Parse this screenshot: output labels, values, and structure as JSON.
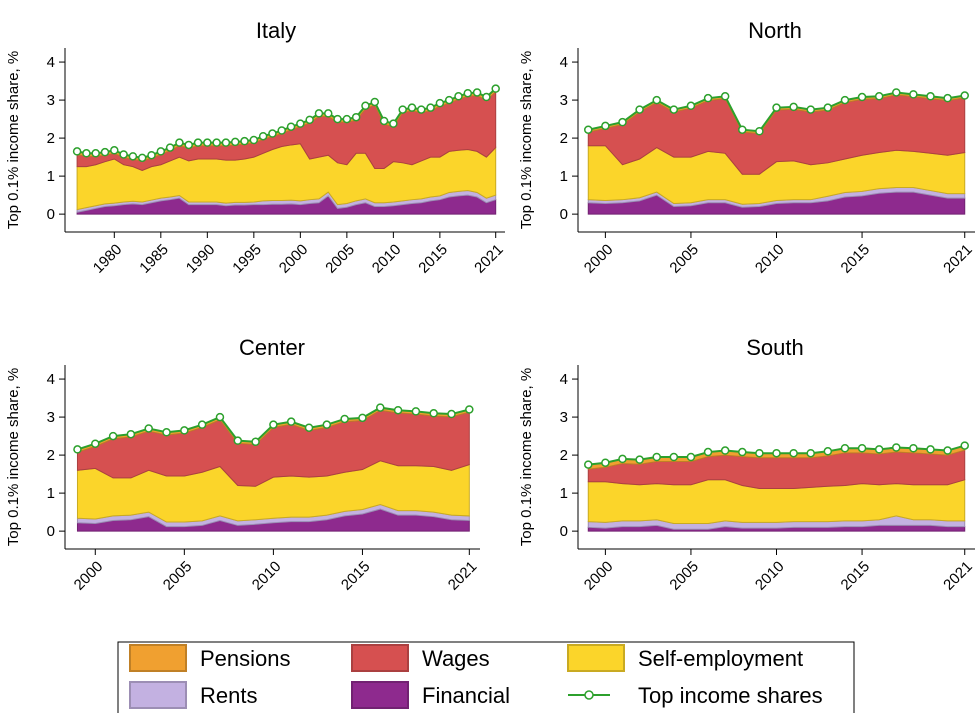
{
  "chart_data": [
    {
      "type": "stacked_area",
      "title": "Italy",
      "ylabel": "Top 0.1% income share, %",
      "x": [
        1976,
        1977,
        1978,
        1979,
        1980,
        1981,
        1982,
        1983,
        1984,
        1985,
        1986,
        1987,
        1988,
        1989,
        1990,
        1991,
        1992,
        1993,
        1994,
        1995,
        1996,
        1997,
        1998,
        1999,
        2000,
        2001,
        2002,
        2003,
        2004,
        2005,
        2006,
        2007,
        2008,
        2009,
        2010,
        2011,
        2012,
        2013,
        2014,
        2015,
        2016,
        2017,
        2018,
        2019,
        2020,
        2021
      ],
      "xlim": [
        1974.7,
        2022
      ],
      "xticks": [
        1980,
        1985,
        1990,
        1995,
        2000,
        2005,
        2010,
        2015,
        2021
      ],
      "ylim": [
        -0.47,
        4.37
      ],
      "yticks": [
        0,
        1,
        2,
        3,
        4
      ],
      "series": [
        {
          "name": "Financial",
          "color": "#8e2a8e",
          "values": [
            0.05,
            0.1,
            0.15,
            0.2,
            0.22,
            0.25,
            0.27,
            0.25,
            0.3,
            0.35,
            0.38,
            0.42,
            0.25,
            0.25,
            0.25,
            0.25,
            0.22,
            0.24,
            0.24,
            0.25,
            0.25,
            0.26,
            0.26,
            0.27,
            0.25,
            0.28,
            0.3,
            0.48,
            0.15,
            0.18,
            0.25,
            0.3,
            0.2,
            0.2,
            0.22,
            0.25,
            0.28,
            0.3,
            0.35,
            0.38,
            0.45,
            0.48,
            0.5,
            0.45,
            0.3,
            0.38
          ]
        },
        {
          "name": "Rents",
          "color": "#c3b1e1",
          "values": [
            0.07,
            0.07,
            0.07,
            0.07,
            0.07,
            0.07,
            0.07,
            0.07,
            0.07,
            0.07,
            0.07,
            0.07,
            0.07,
            0.07,
            0.07,
            0.07,
            0.07,
            0.07,
            0.07,
            0.07,
            0.1,
            0.1,
            0.1,
            0.1,
            0.1,
            0.1,
            0.1,
            0.1,
            0.1,
            0.1,
            0.1,
            0.1,
            0.1,
            0.1,
            0.1,
            0.1,
            0.1,
            0.1,
            0.1,
            0.1,
            0.12,
            0.12,
            0.12,
            0.12,
            0.12,
            0.12
          ]
        },
        {
          "name": "Self-employment",
          "color": "#fbd52a",
          "values": [
            1.13,
            1.08,
            1.08,
            1.11,
            1.16,
            0.98,
            0.91,
            0.83,
            0.88,
            0.88,
            0.95,
            1.01,
            1.08,
            1.13,
            1.13,
            1.13,
            1.13,
            1.11,
            1.14,
            1.18,
            1.25,
            1.34,
            1.42,
            1.45,
            1.5,
            1.07,
            1.1,
            0.97,
            1.1,
            1.02,
            1.25,
            1.2,
            0.9,
            0.9,
            1.06,
            1.0,
            0.92,
            1.0,
            1.05,
            1.02,
            1.08,
            1.08,
            1.08,
            1.08,
            1.08,
            1.25
          ]
        },
        {
          "name": "Wages",
          "color": "#d65050",
          "values": [
            0.32,
            0.27,
            0.22,
            0.17,
            0.15,
            0.19,
            0.19,
            0.25,
            0.22,
            0.27,
            0.27,
            0.3,
            0.34,
            0.35,
            0.35,
            0.35,
            0.38,
            0.4,
            0.39,
            0.37,
            0.37,
            0.34,
            0.34,
            0.4,
            0.45,
            0.95,
            1.07,
            1.02,
            1.07,
            1.12,
            0.87,
            1.17,
            1.67,
            1.17,
            0.92,
            1.32,
            1.42,
            1.27,
            1.22,
            1.34,
            1.27,
            1.34,
            1.4,
            1.47,
            1.5,
            1.47
          ]
        },
        {
          "name": "Pensions",
          "color": "#f0a030",
          "values": [
            0.08,
            0.08,
            0.08,
            0.08,
            0.08,
            0.08,
            0.08,
            0.08,
            0.08,
            0.08,
            0.08,
            0.08,
            0.08,
            0.08,
            0.08,
            0.08,
            0.08,
            0.08,
            0.08,
            0.08,
            0.08,
            0.08,
            0.08,
            0.08,
            0.08,
            0.08,
            0.08,
            0.08,
            0.08,
            0.08,
            0.08,
            0.08,
            0.08,
            0.08,
            0.08,
            0.08,
            0.08,
            0.08,
            0.08,
            0.08,
            0.08,
            0.08,
            0.08,
            0.08,
            0.08,
            0.08
          ]
        },
        {
          "name": "Top income shares",
          "type": "line",
          "color": "#2ca02c",
          "values": [
            1.65,
            1.6,
            1.6,
            1.63,
            1.68,
            1.57,
            1.52,
            1.48,
            1.55,
            1.65,
            1.75,
            1.88,
            1.82,
            1.88,
            1.88,
            1.88,
            1.88,
            1.9,
            1.92,
            1.95,
            2.05,
            2.12,
            2.2,
            2.3,
            2.38,
            2.48,
            2.65,
            2.65,
            2.5,
            2.5,
            2.55,
            2.85,
            2.95,
            2.45,
            2.38,
            2.75,
            2.8,
            2.75,
            2.8,
            2.92,
            3.0,
            3.1,
            3.18,
            3.2,
            3.08,
            3.3
          ]
        }
      ]
    },
    {
      "type": "stacked_area",
      "title": "North",
      "ylabel": "Top 0.1% income share, %",
      "x": [
        1999,
        2000,
        2001,
        2002,
        2003,
        2004,
        2005,
        2006,
        2007,
        2008,
        2009,
        2010,
        2011,
        2012,
        2013,
        2014,
        2015,
        2016,
        2017,
        2018,
        2019,
        2020,
        2021
      ],
      "xlim": [
        1998.4,
        2021.6
      ],
      "xticks": [
        2000,
        2005,
        2010,
        2015,
        2021
      ],
      "ylim": [
        -0.47,
        4.37
      ],
      "yticks": [
        0,
        1,
        2,
        3,
        4
      ],
      "series": [
        {
          "name": "Financial",
          "color": "#8e2a8e",
          "values": [
            0.3,
            0.28,
            0.3,
            0.35,
            0.5,
            0.2,
            0.22,
            0.3,
            0.3,
            0.18,
            0.2,
            0.28,
            0.3,
            0.3,
            0.35,
            0.45,
            0.48,
            0.55,
            0.58,
            0.58,
            0.5,
            0.42,
            0.42
          ]
        },
        {
          "name": "Rents",
          "color": "#c3b1e1",
          "values": [
            0.08,
            0.08,
            0.08,
            0.08,
            0.08,
            0.08,
            0.08,
            0.08,
            0.08,
            0.08,
            0.08,
            0.08,
            0.08,
            0.08,
            0.12,
            0.12,
            0.12,
            0.12,
            0.12,
            0.12,
            0.12,
            0.12,
            0.12
          ]
        },
        {
          "name": "Self-employment",
          "color": "#fbd52a",
          "values": [
            1.42,
            1.44,
            0.92,
            1.02,
            1.17,
            1.22,
            1.2,
            1.27,
            1.22,
            0.79,
            0.77,
            1.02,
            1.02,
            0.92,
            0.88,
            0.88,
            0.95,
            0.95,
            0.98,
            0.95,
            0.98,
            1.01,
            1.08
          ]
        },
        {
          "name": "Wages",
          "color": "#d65050",
          "values": [
            0.36,
            0.46,
            1.06,
            1.24,
            1.19,
            1.19,
            1.29,
            1.34,
            1.44,
            1.11,
            1.07,
            1.36,
            1.36,
            1.39,
            1.39,
            1.49,
            1.47,
            1.42,
            1.46,
            1.44,
            1.44,
            1.44,
            1.44
          ]
        },
        {
          "name": "Pensions",
          "color": "#f0a030",
          "values": [
            0.06,
            0.06,
            0.06,
            0.06,
            0.06,
            0.06,
            0.06,
            0.06,
            0.06,
            0.06,
            0.06,
            0.06,
            0.06,
            0.06,
            0.06,
            0.06,
            0.06,
            0.06,
            0.06,
            0.06,
            0.06,
            0.06,
            0.06
          ]
        },
        {
          "name": "Top income shares",
          "type": "line",
          "color": "#2ca02c",
          "values": [
            2.22,
            2.32,
            2.42,
            2.75,
            3.0,
            2.75,
            2.85,
            3.05,
            3.1,
            2.22,
            2.18,
            2.8,
            2.82,
            2.75,
            2.8,
            3.0,
            3.08,
            3.1,
            3.2,
            3.15,
            3.1,
            3.05,
            3.12
          ]
        }
      ]
    },
    {
      "type": "stacked_area",
      "title": "Center",
      "ylabel": "Top 0.1% income share, %",
      "x": [
        1999,
        2000,
        2001,
        2002,
        2003,
        2004,
        2005,
        2006,
        2007,
        2008,
        2009,
        2010,
        2011,
        2012,
        2013,
        2014,
        2015,
        2016,
        2017,
        2018,
        2019,
        2020,
        2021
      ],
      "xlim": [
        1998.3,
        2021.6
      ],
      "xticks": [
        2000,
        2005,
        2010,
        2015,
        2021
      ],
      "ylim": [
        -0.47,
        4.37
      ],
      "yticks": [
        0,
        1,
        2,
        3,
        4
      ],
      "series": [
        {
          "name": "Financial",
          "color": "#8e2a8e",
          "values": [
            0.22,
            0.2,
            0.28,
            0.3,
            0.38,
            0.12,
            0.12,
            0.15,
            0.28,
            0.15,
            0.18,
            0.22,
            0.25,
            0.25,
            0.3,
            0.4,
            0.45,
            0.58,
            0.42,
            0.42,
            0.38,
            0.3,
            0.28
          ]
        },
        {
          "name": "Rents",
          "color": "#c3b1e1",
          "values": [
            0.12,
            0.12,
            0.12,
            0.12,
            0.12,
            0.12,
            0.12,
            0.12,
            0.12,
            0.12,
            0.12,
            0.12,
            0.12,
            0.12,
            0.12,
            0.12,
            0.12,
            0.12,
            0.12,
            0.12,
            0.12,
            0.12,
            0.12
          ]
        },
        {
          "name": "Self-employment",
          "color": "#fbd52a",
          "values": [
            1.26,
            1.33,
            1.0,
            0.98,
            1.1,
            1.21,
            1.21,
            1.28,
            1.3,
            0.93,
            0.88,
            1.08,
            1.08,
            1.05,
            1.03,
            1.03,
            1.05,
            1.15,
            1.18,
            1.18,
            1.2,
            1.18,
            1.35
          ]
        },
        {
          "name": "Wages",
          "color": "#d65050",
          "values": [
            0.48,
            0.58,
            1.03,
            1.08,
            1.03,
            1.08,
            1.13,
            1.18,
            1.23,
            1.11,
            1.1,
            1.31,
            1.36,
            1.23,
            1.28,
            1.33,
            1.29,
            1.33,
            1.39,
            1.36,
            1.33,
            1.41,
            1.38
          ]
        },
        {
          "name": "Pensions",
          "color": "#f0a030",
          "values": [
            0.07,
            0.07,
            0.07,
            0.07,
            0.07,
            0.07,
            0.07,
            0.07,
            0.07,
            0.07,
            0.07,
            0.07,
            0.07,
            0.07,
            0.07,
            0.07,
            0.07,
            0.07,
            0.07,
            0.07,
            0.07,
            0.07,
            0.07
          ]
        },
        {
          "name": "Top income shares",
          "type": "line",
          "color": "#2ca02c",
          "values": [
            2.15,
            2.3,
            2.5,
            2.55,
            2.7,
            2.6,
            2.65,
            2.8,
            3.0,
            2.38,
            2.35,
            2.8,
            2.88,
            2.72,
            2.8,
            2.95,
            2.98,
            3.25,
            3.18,
            3.15,
            3.1,
            3.08,
            3.2
          ]
        }
      ]
    },
    {
      "type": "stacked_area",
      "title": "South",
      "ylabel": "Top 0.1% income share, %",
      "x": [
        1999,
        2000,
        2001,
        2002,
        2003,
        2004,
        2005,
        2006,
        2007,
        2008,
        2009,
        2010,
        2011,
        2012,
        2013,
        2014,
        2015,
        2016,
        2017,
        2018,
        2019,
        2020,
        2021
      ],
      "xlim": [
        1998.4,
        2021.6
      ],
      "xticks": [
        2000,
        2005,
        2010,
        2015,
        2021
      ],
      "ylim": [
        -0.47,
        4.37
      ],
      "yticks": [
        0,
        1,
        2,
        3,
        4
      ],
      "series": [
        {
          "name": "Financial",
          "color": "#8e2a8e",
          "values": [
            0.1,
            0.08,
            0.12,
            0.12,
            0.15,
            0.05,
            0.05,
            0.05,
            0.12,
            0.08,
            0.08,
            0.08,
            0.1,
            0.1,
            0.1,
            0.12,
            0.12,
            0.15,
            0.15,
            0.15,
            0.15,
            0.12,
            0.12
          ]
        },
        {
          "name": "Rents",
          "color": "#c3b1e1",
          "values": [
            0.15,
            0.15,
            0.15,
            0.15,
            0.15,
            0.15,
            0.15,
            0.15,
            0.15,
            0.15,
            0.15,
            0.15,
            0.15,
            0.15,
            0.15,
            0.15,
            0.15,
            0.15,
            0.25,
            0.15,
            0.15,
            0.15,
            0.15
          ]
        },
        {
          "name": "Self-employment",
          "color": "#fbd52a",
          "values": [
            1.05,
            1.07,
            0.98,
            0.95,
            0.95,
            1.02,
            1.02,
            1.15,
            1.08,
            0.97,
            0.89,
            0.89,
            0.87,
            0.9,
            0.93,
            0.93,
            0.98,
            0.92,
            0.85,
            0.92,
            0.92,
            0.95,
            1.08
          ]
        },
        {
          "name": "Wages",
          "color": "#d65050",
          "values": [
            0.33,
            0.38,
            0.53,
            0.54,
            0.58,
            0.61,
            0.61,
            0.61,
            0.65,
            0.76,
            0.81,
            0.81,
            0.81,
            0.78,
            0.8,
            0.86,
            0.81,
            0.81,
            0.83,
            0.84,
            0.81,
            0.78,
            0.78
          ]
        },
        {
          "name": "Pensions",
          "color": "#f0a030",
          "values": [
            0.12,
            0.12,
            0.12,
            0.12,
            0.12,
            0.12,
            0.12,
            0.12,
            0.12,
            0.12,
            0.12,
            0.12,
            0.12,
            0.12,
            0.12,
            0.12,
            0.12,
            0.12,
            0.12,
            0.12,
            0.12,
            0.12,
            0.12
          ]
        },
        {
          "name": "Top income shares",
          "type": "line",
          "color": "#2ca02c",
          "values": [
            1.75,
            1.8,
            1.9,
            1.88,
            1.95,
            1.95,
            1.95,
            2.08,
            2.12,
            2.08,
            2.05,
            2.05,
            2.05,
            2.05,
            2.1,
            2.18,
            2.18,
            2.15,
            2.2,
            2.18,
            2.15,
            2.12,
            2.25
          ]
        }
      ]
    }
  ]
}
